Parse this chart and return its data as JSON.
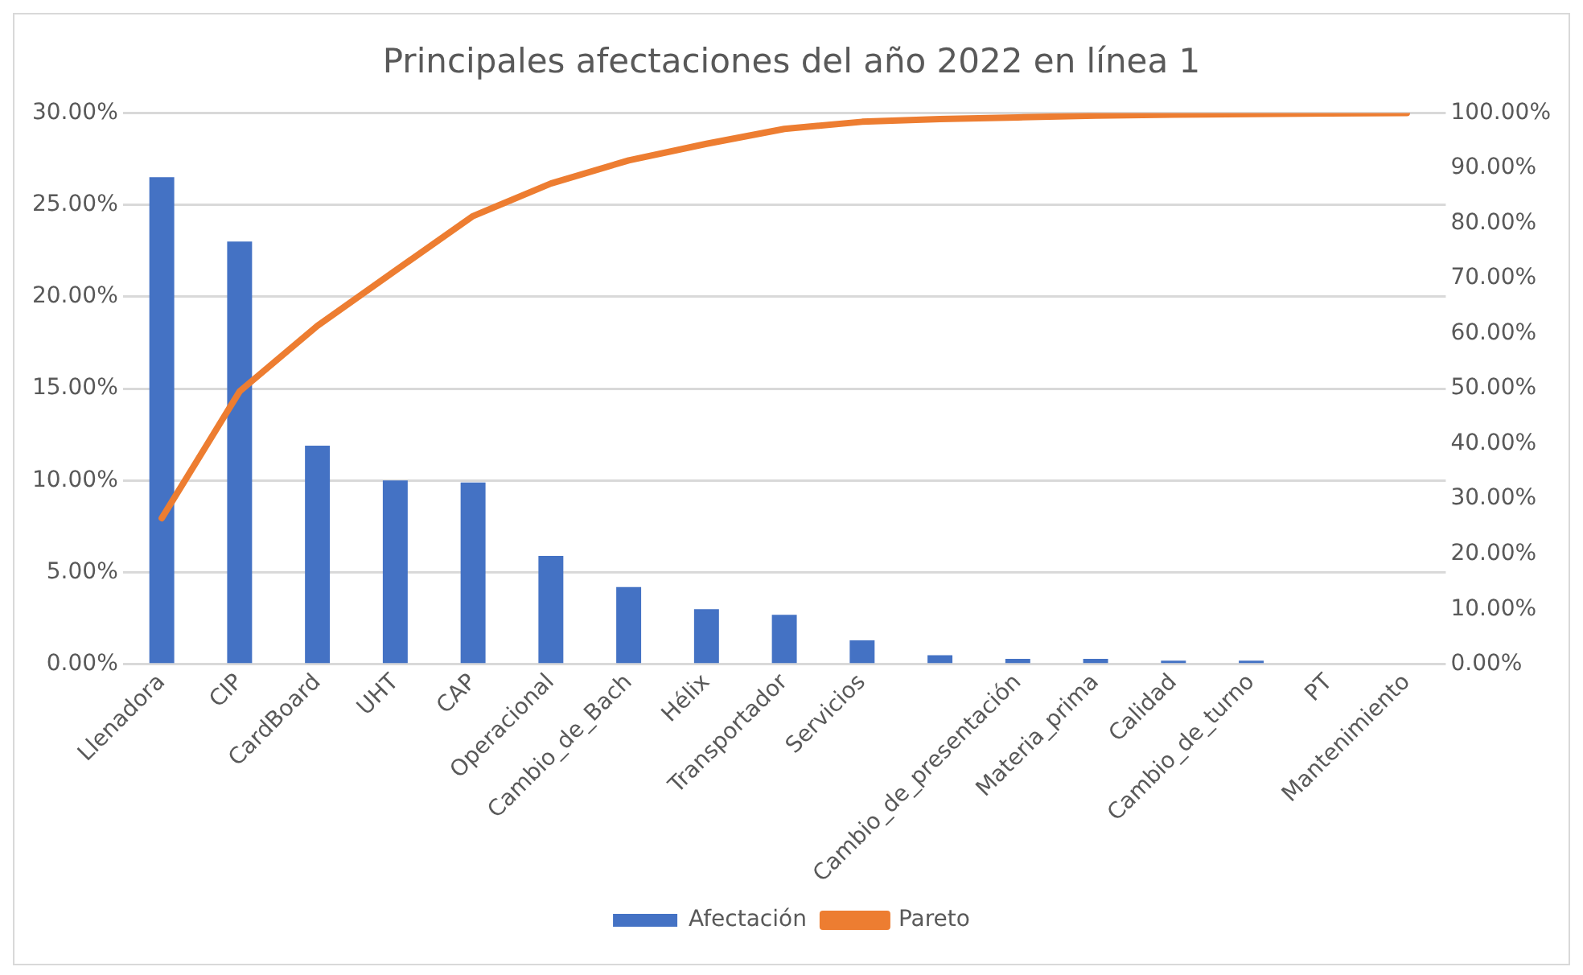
{
  "chart_data": {
    "type": "bar",
    "title": "Principales afectaciones del año 2022 en línea 1",
    "categories": [
      "Llenadora",
      "CIP",
      "CardBoard",
      "UHT",
      "CAP",
      "Operacional",
      "Cambio_de_Bach",
      "Hélix",
      "Transportador",
      "Servicios",
      null,
      "Cambio_de_presentación",
      "Materia_prima",
      "Calidad",
      "Cambio_de_turno",
      "PT",
      "Mantenimiento"
    ],
    "series": [
      {
        "name": "Afectación",
        "color": "#4472c4",
        "values": [
          26.5,
          23.0,
          11.9,
          10.0,
          9.9,
          5.9,
          4.2,
          3.0,
          2.7,
          1.3,
          0.5,
          0.3,
          0.3,
          0.2,
          0.2,
          0,
          0
        ]
      },
      {
        "name": "Pareto",
        "type": "line",
        "axis": "y2",
        "color": "#ed7d31",
        "values": [
          26.5,
          49.5,
          61.4,
          71.4,
          81.3,
          87.2,
          91.4,
          94.4,
          97.1,
          98.4,
          98.9,
          99.2,
          99.5,
          99.7,
          99.8,
          99.9,
          100
        ]
      }
    ],
    "ylim": [
      0,
      30
    ],
    "yticks": [
      {
        "value": 0,
        "label": "0.00%"
      },
      {
        "value": 5,
        "label": "5.00%"
      },
      {
        "value": 10,
        "label": "10.00%"
      },
      {
        "value": 15,
        "label": "15.00%"
      },
      {
        "value": 20,
        "label": "20.00%"
      },
      {
        "value": 25,
        "label": "25.00%"
      },
      {
        "value": 30,
        "label": "30.00%"
      }
    ],
    "y2lim": [
      0,
      100
    ],
    "y2ticks": [
      {
        "value": 0,
        "label": "0.00%"
      },
      {
        "value": 10,
        "label": "10.00%"
      },
      {
        "value": 20,
        "label": "20.00%"
      },
      {
        "value": 30,
        "label": "30.00%"
      },
      {
        "value": 40,
        "label": "40.00%"
      },
      {
        "value": 50,
        "label": "50.00%"
      },
      {
        "value": 60,
        "label": "60.00%"
      },
      {
        "value": 70,
        "label": "70.00%"
      },
      {
        "value": 80,
        "label": "80.00%"
      },
      {
        "value": 90,
        "label": "90.00%"
      },
      {
        "value": 100,
        "label": "100.00%"
      }
    ],
    "grid": "y",
    "legend": "bottom",
    "marker": "none",
    "line_style": "solid"
  }
}
